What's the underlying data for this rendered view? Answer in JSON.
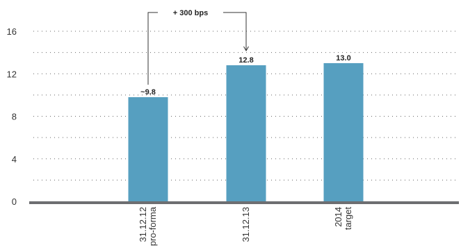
{
  "chart_data": {
    "type": "bar",
    "categories": [
      [
        "31.12.12",
        "pro-forma"
      ],
      [
        "31.12.13"
      ],
      [
        "2014",
        "target"
      ]
    ],
    "values": [
      9.8,
      12.8,
      13.0
    ],
    "data_labels": [
      "~9.8",
      "12.8",
      "13.0"
    ],
    "yticks": [
      0,
      4,
      8,
      12,
      16
    ],
    "ylim": [
      0,
      17
    ],
    "grid": true,
    "bar_color": "#569fc0",
    "axis_color": "#6d6e71",
    "grid_color": "#666666",
    "annotation": {
      "text": "+ 300 bps",
      "from_category": 0,
      "to_category": 1
    }
  }
}
